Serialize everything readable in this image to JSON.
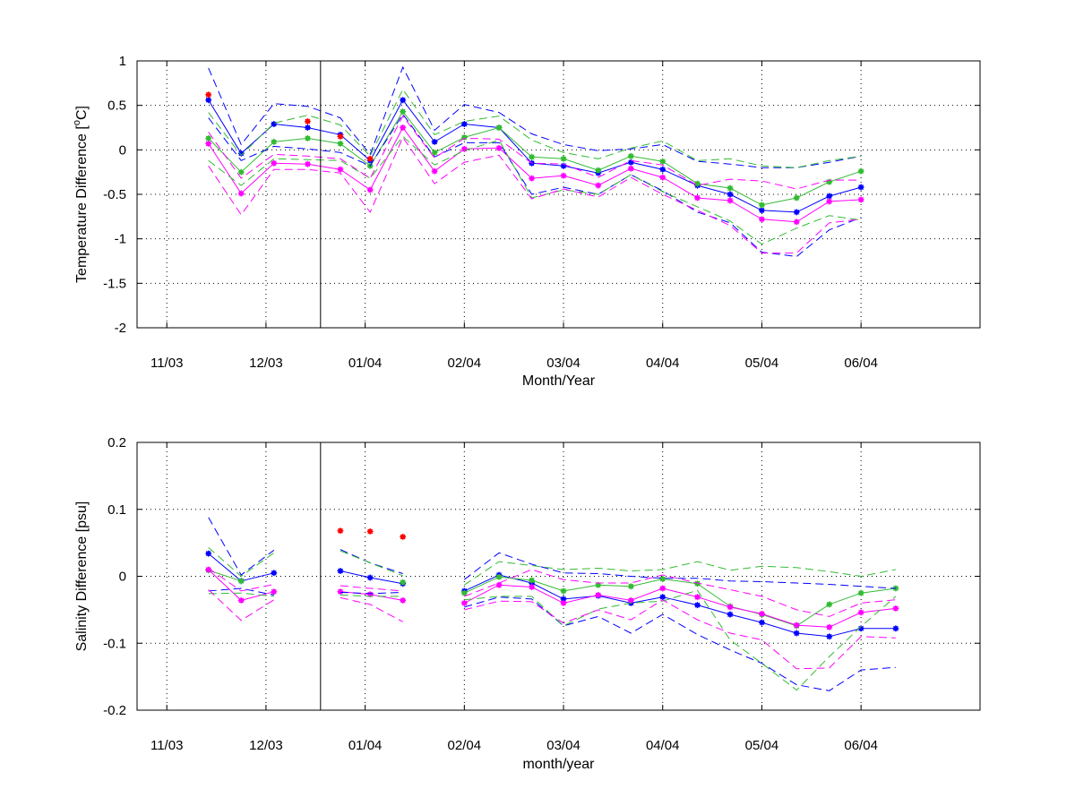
{
  "colors": {
    "blue": "#0000ff",
    "green": "#33bb33",
    "magenta": "#ff00ff",
    "red": "#ff0000",
    "axis": "#000000",
    "grid": "#000000"
  },
  "chart_data": [
    {
      "type": "line",
      "ylabel_main": "Temperature Difference [",
      "ylabel_sup": "o",
      "ylabel_tail": "C]",
      "xlabel": "Month/Year",
      "x_tick_labels": [
        "11/03",
        "12/03",
        "01/04",
        "02/04",
        "03/04",
        "04/04",
        "05/04",
        "06/04"
      ],
      "y_tick_labels": [
        "1",
        "0.5",
        "0",
        "-0.5",
        "-1",
        "-1.5",
        "-2"
      ],
      "ylim": [
        -2,
        1
      ],
      "grid": true,
      "vertical_line_month": 1.55,
      "x": [
        0.42,
        0.75,
        1.08,
        1.42,
        1.75,
        2.05,
        2.38,
        2.7,
        3.0,
        3.35,
        3.68,
        4.0,
        4.35,
        4.68,
        5.0,
        5.35,
        5.68,
        6.0,
        6.35,
        6.68,
        7.0,
        7.35
      ],
      "series": [
        {
          "color": "blue",
          "style": "solid-marker",
          "values": [
            0.56,
            -0.04,
            0.29,
            0.25,
            0.17,
            -0.12,
            0.56,
            0.09,
            0.29,
            0.25,
            -0.15,
            -0.18,
            -0.26,
            -0.14,
            -0.22,
            -0.4,
            -0.5,
            -0.68,
            -0.7,
            -0.52,
            -0.42,
            null
          ]
        },
        {
          "color": "green",
          "style": "solid-marker",
          "values": [
            0.13,
            -0.25,
            0.09,
            0.13,
            0.07,
            -0.18,
            0.43,
            -0.03,
            0.14,
            0.25,
            -0.08,
            -0.1,
            -0.23,
            -0.07,
            -0.13,
            -0.38,
            -0.43,
            -0.62,
            -0.54,
            -0.36,
            -0.24,
            null
          ]
        },
        {
          "color": "magenta",
          "style": "solid-marker",
          "values": [
            0.07,
            -0.49,
            -0.15,
            -0.16,
            -0.22,
            -0.45,
            0.25,
            -0.24,
            0.01,
            0.02,
            -0.32,
            -0.29,
            -0.4,
            -0.21,
            -0.31,
            -0.54,
            -0.57,
            -0.78,
            -0.81,
            -0.58,
            -0.56,
            null
          ]
        },
        {
          "color": "blue",
          "style": "dashed",
          "values": [
            0.92,
            0.06,
            0.52,
            0.49,
            0.36,
            -0.05,
            0.93,
            0.22,
            0.51,
            0.42,
            0.18,
            0.06,
            -0.01,
            0.01,
            0.06,
            -0.13,
            -0.16,
            -0.2,
            -0.2,
            -0.14,
            -0.07,
            null
          ]
        },
        {
          "color": "blue",
          "style": "dashed",
          "values": [
            0.36,
            -0.12,
            0.04,
            0.01,
            -0.03,
            -0.18,
            0.4,
            -0.08,
            0.08,
            0.08,
            -0.5,
            -0.42,
            -0.5,
            -0.28,
            -0.46,
            -0.7,
            -0.82,
            -1.15,
            -1.2,
            -0.9,
            -0.76,
            null
          ]
        },
        {
          "color": "green",
          "style": "dashed",
          "values": [
            0.42,
            -0.06,
            0.3,
            0.39,
            0.28,
            -0.07,
            0.68,
            0.17,
            0.32,
            0.38,
            0.11,
            -0.03,
            -0.1,
            0.02,
            0.1,
            -0.12,
            -0.1,
            -0.18,
            -0.2,
            -0.12,
            -0.07,
            null
          ]
        },
        {
          "color": "green",
          "style": "dashed",
          "values": [
            -0.12,
            -0.4,
            -0.1,
            -0.11,
            -0.12,
            -0.32,
            0.15,
            -0.17,
            -0.01,
            0.11,
            -0.54,
            -0.45,
            -0.5,
            -0.28,
            -0.47,
            -0.64,
            -0.8,
            -1.06,
            -0.88,
            -0.74,
            -0.79,
            null
          ]
        },
        {
          "color": "magenta",
          "style": "dashed",
          "values": [
            0.2,
            -0.32,
            -0.05,
            -0.07,
            -0.1,
            -0.32,
            0.38,
            -0.09,
            0.13,
            0.12,
            -0.15,
            -0.16,
            -0.31,
            -0.12,
            -0.17,
            -0.4,
            -0.33,
            -0.35,
            -0.44,
            -0.34,
            -0.34,
            null
          ]
        },
        {
          "color": "magenta",
          "style": "dashed",
          "values": [
            -0.18,
            -0.73,
            -0.22,
            -0.22,
            -0.26,
            -0.7,
            0.14,
            -0.38,
            -0.14,
            -0.06,
            -0.55,
            -0.44,
            -0.53,
            -0.31,
            -0.5,
            -0.68,
            -0.85,
            -1.16,
            -1.16,
            -0.82,
            -0.78,
            null
          ]
        },
        {
          "color": "red",
          "style": "markers",
          "values": [
            0.62,
            null,
            null,
            0.32,
            0.15,
            -0.1,
            null,
            null,
            null,
            null,
            null,
            null,
            null,
            null,
            null,
            null,
            null,
            null,
            null,
            null,
            null,
            null
          ]
        }
      ]
    },
    {
      "type": "line",
      "ylabel": "Salinity Difference [psu]",
      "xlabel": "month/year",
      "x_tick_labels": [
        "11/03",
        "12/03",
        "01/04",
        "02/04",
        "03/04",
        "04/04",
        "05/04",
        "06/04"
      ],
      "y_tick_labels": [
        "0.2",
        "0.1",
        "0",
        "-0.1",
        "-0.2"
      ],
      "ylim": [
        -0.2,
        0.2
      ],
      "grid": true,
      "vertical_line_month": 1.55,
      "x": [
        0.42,
        0.75,
        1.08,
        1.42,
        1.75,
        2.05,
        2.38,
        2.7,
        3.0,
        3.35,
        3.68,
        4.0,
        4.35,
        4.68,
        5.0,
        5.35,
        5.68,
        6.0,
        6.35,
        6.68,
        7.0,
        7.35
      ],
      "series": [
        {
          "color": "blue",
          "style": "solid-marker",
          "values": [
            0.034,
            -0.007,
            0.005,
            null,
            0.008,
            -0.002,
            -0.011,
            null,
            -0.022,
            0.002,
            -0.01,
            -0.034,
            -0.029,
            -0.04,
            -0.031,
            -0.043,
            -0.057,
            -0.069,
            -0.085,
            -0.09,
            -0.078,
            -0.078
          ]
        },
        {
          "color": "green",
          "style": "solid-marker",
          "values": [
            0.009,
            -0.007,
            null,
            null,
            null,
            null,
            -0.009,
            null,
            -0.025,
            -0.001,
            -0.006,
            -0.022,
            -0.013,
            -0.015,
            -0.004,
            -0.011,
            -0.045,
            -0.057,
            -0.074,
            -0.042,
            -0.025,
            -0.018
          ]
        },
        {
          "color": "magenta",
          "style": "solid-marker",
          "values": [
            0.01,
            -0.036,
            -0.023,
            null,
            -0.023,
            -0.027,
            -0.036,
            null,
            -0.04,
            -0.013,
            -0.016,
            -0.04,
            -0.028,
            -0.036,
            -0.018,
            -0.031,
            -0.046,
            -0.056,
            -0.073,
            -0.076,
            -0.054,
            -0.048
          ]
        },
        {
          "color": "blue",
          "style": "dashed",
          "values": [
            0.088,
            0.002,
            0.039,
            null,
            0.04,
            0.02,
            0.004,
            null,
            -0.005,
            0.035,
            0.018,
            0.005,
            0.004,
            0.0,
            -0.003,
            -0.003,
            -0.007,
            -0.008,
            -0.01,
            -0.012,
            -0.015,
            -0.018
          ]
        },
        {
          "color": "blue",
          "style": "dashed",
          "values": [
            -0.022,
            -0.018,
            -0.028,
            null,
            -0.024,
            -0.026,
            -0.024,
            null,
            -0.046,
            -0.031,
            -0.034,
            -0.074,
            -0.06,
            -0.085,
            -0.057,
            -0.087,
            -0.11,
            -0.13,
            -0.162,
            -0.171,
            -0.14,
            -0.136
          ]
        },
        {
          "color": "green",
          "style": "dashed",
          "values": [
            0.043,
            0.0,
            0.035,
            null,
            0.038,
            0.02,
            0.001,
            null,
            -0.013,
            0.022,
            0.016,
            0.01,
            0.012,
            0.008,
            0.01,
            0.022,
            0.009,
            0.015,
            0.013,
            0.007,
            0.0,
            0.01
          ]
        },
        {
          "color": "green",
          "style": "dashed",
          "values": [
            -0.026,
            -0.025,
            -0.03,
            null,
            -0.028,
            -0.03,
            -0.03,
            null,
            -0.035,
            -0.03,
            -0.03,
            -0.074,
            -0.049,
            -0.04,
            -0.037,
            -0.021,
            -0.095,
            -0.13,
            -0.17,
            -0.12,
            -0.075,
            -0.03
          ]
        },
        {
          "color": "magenta",
          "style": "dashed",
          "values": [
            0.012,
            -0.022,
            -0.012,
            null,
            -0.014,
            -0.018,
            -0.022,
            null,
            -0.03,
            -0.01,
            0.01,
            -0.005,
            -0.01,
            -0.01,
            0.002,
            -0.01,
            -0.02,
            -0.03,
            -0.05,
            -0.06,
            -0.04,
            -0.035
          ]
        },
        {
          "color": "magenta",
          "style": "dashed",
          "values": [
            -0.02,
            -0.066,
            -0.035,
            null,
            -0.032,
            -0.042,
            -0.068,
            null,
            -0.05,
            -0.037,
            -0.038,
            -0.07,
            -0.05,
            -0.065,
            -0.035,
            -0.065,
            -0.085,
            -0.095,
            -0.138,
            -0.137,
            -0.09,
            -0.092
          ]
        },
        {
          "color": "red",
          "style": "markers",
          "values": [
            null,
            null,
            null,
            null,
            0.068,
            0.067,
            0.059,
            null,
            null,
            null,
            null,
            null,
            null,
            null,
            null,
            null,
            null,
            null,
            null,
            null,
            null,
            null
          ]
        }
      ]
    }
  ]
}
